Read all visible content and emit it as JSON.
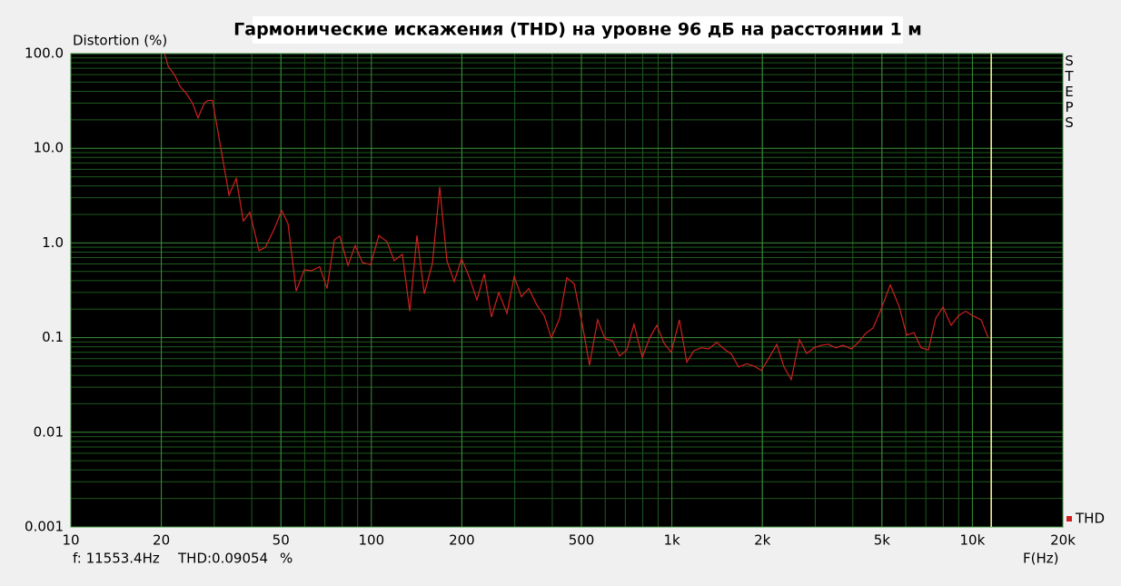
{
  "chart_data": {
    "type": "line",
    "title": "Гармонические искажения (THD) на уровне 96 дБ на расстоянии 1 м",
    "y_label": "Distortion (%)",
    "x_label": "F(Hz)",
    "side_label": "STEPS",
    "log_x": true,
    "log_y": true,
    "grid": true,
    "minor_grid": true,
    "xlim": [
      10,
      20000
    ],
    "ylim": [
      0.001,
      100
    ],
    "xticks": [
      10,
      20,
      50,
      100,
      200,
      500,
      {
        "value": 1000,
        "label": "1k"
      },
      {
        "value": 2000,
        "label": "2k"
      },
      {
        "value": 5000,
        "label": "5k"
      },
      {
        "value": 10000,
        "label": "10k"
      },
      {
        "value": 20000,
        "label": "20k"
      }
    ],
    "yticks": [
      {
        "value": 100,
        "label": "100.0"
      },
      {
        "value": 10,
        "label": "10.0"
      },
      {
        "value": 1,
        "label": "1.0"
      },
      0.1,
      0.01,
      0.001
    ],
    "x": [
      20.5,
      21.1,
      22.1,
      23.1,
      24.2,
      25.4,
      26.5,
      27.8,
      28.6,
      29.6,
      31.1,
      33.6,
      35.5,
      37.5,
      39.4,
      42.3,
      44.4,
      47.5,
      50.3,
      52.8,
      56.2,
      59.8,
      63.2,
      67.3,
      71.2,
      75.3,
      78.5,
      83.6,
      88.3,
      93.4,
      99.4,
      105.9,
      112.7,
      119.1,
      126.8,
      134.2,
      141.8,
      150,
      159.7,
      168.8,
      178.4,
      188.7,
      199.5,
      211,
      224.5,
      237.5,
      251,
      265.5,
      282.6,
      298.8,
      315.8,
      334,
      355.6,
      376,
      397,
      423,
      447,
      473,
      504,
      532,
      566,
      599,
      634,
      670,
      708,
      748,
      797,
      843,
      891,
      942,
      995,
      1059,
      1121,
      1185,
      1253,
      1325,
      1410,
      1491,
      1577,
      1667,
      1775,
      1876,
      1984,
      2112,
      2233,
      2361,
      2496,
      2657,
      2809,
      2970,
      3140,
      3320,
      3510,
      3711,
      3951,
      4177,
      4416,
      4669,
      4936,
      5330,
      5715,
      6042,
      6388,
      6753,
      7140,
      7549,
      7981,
      8496,
      8983,
      9497,
      10040,
      10690,
      11300
    ],
    "series": [
      {
        "name": "THD",
        "color": "#d02020",
        "values": [
          100,
          73,
          60,
          45,
          38,
          30,
          21,
          30,
          32,
          32,
          13,
          3.2,
          4.8,
          1.7,
          2.1,
          0.83,
          0.9,
          1.4,
          2.2,
          1.6,
          0.31,
          0.52,
          0.51,
          0.56,
          0.33,
          1.08,
          1.18,
          0.58,
          0.94,
          0.62,
          0.59,
          1.2,
          1.03,
          0.65,
          0.76,
          0.19,
          1.2,
          0.29,
          0.61,
          3.9,
          0.65,
          0.39,
          0.68,
          0.45,
          0.25,
          0.47,
          0.165,
          0.3,
          0.18,
          0.44,
          0.27,
          0.33,
          0.22,
          0.17,
          0.099,
          0.16,
          0.43,
          0.37,
          0.135,
          0.051,
          0.154,
          0.097,
          0.093,
          0.064,
          0.074,
          0.138,
          0.062,
          0.099,
          0.135,
          0.087,
          0.07,
          0.154,
          0.055,
          0.073,
          0.078,
          0.076,
          0.089,
          0.076,
          0.067,
          0.049,
          0.053,
          0.05,
          0.045,
          0.062,
          0.085,
          0.049,
          0.036,
          0.095,
          0.068,
          0.078,
          0.083,
          0.085,
          0.078,
          0.083,
          0.076,
          0.089,
          0.111,
          0.126,
          0.19,
          0.36,
          0.21,
          0.106,
          0.113,
          0.078,
          0.074,
          0.16,
          0.21,
          0.135,
          0.17,
          0.19,
          0.17,
          0.154,
          0.099
        ]
      }
    ],
    "cursor": {
      "x": 11553.4,
      "color": "#ffff99",
      "label": "f: 11553.4Hz",
      "readout": "THD:0.09054",
      "unit": "%"
    }
  }
}
